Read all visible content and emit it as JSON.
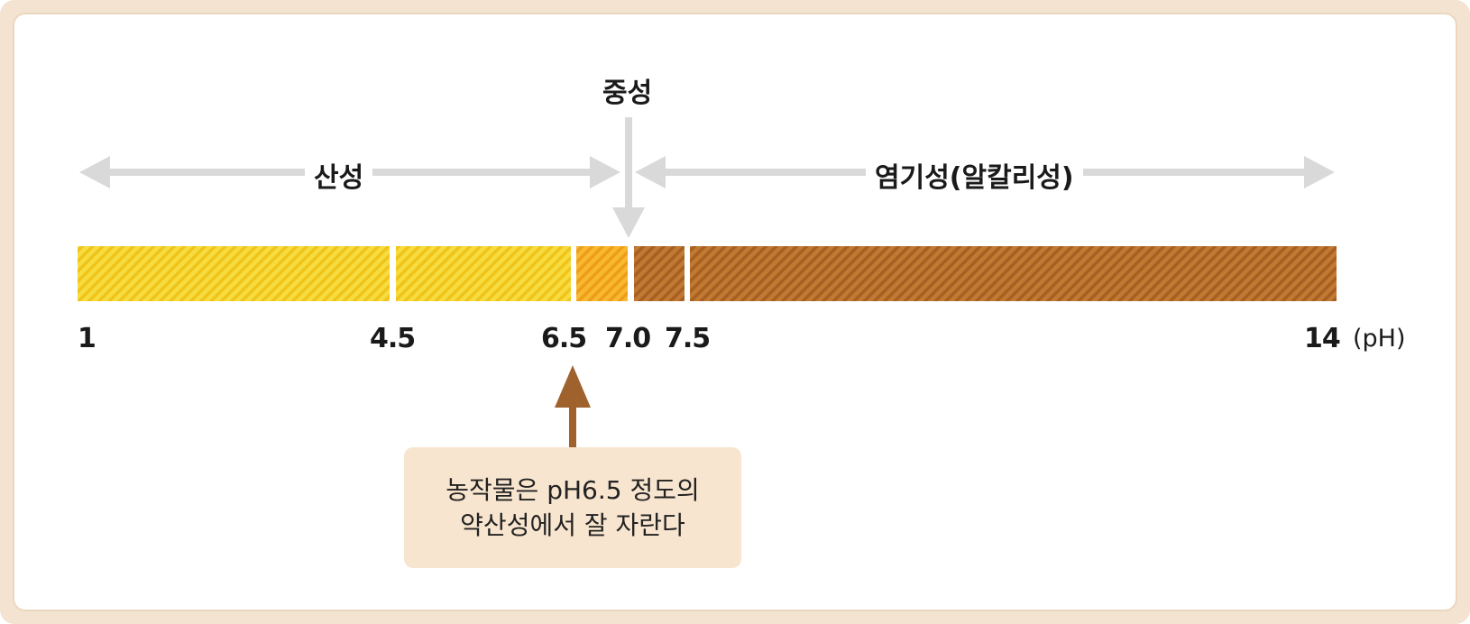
{
  "zones": {
    "acidic": "산성",
    "neutral": "중성",
    "alkaline": "염기성(알칼리성)"
  },
  "scale": {
    "ticks": [
      "1",
      "4.5",
      "6.5",
      "7.0",
      "7.5",
      "14"
    ],
    "unit": "(pH)",
    "segments": [
      {
        "from": 1,
        "to": 4.5,
        "color": "#f5d21c"
      },
      {
        "from": 4.5,
        "to": 6.5,
        "color": "#f5d21c"
      },
      {
        "from": 6.5,
        "to": 7.0,
        "color": "#f5aa1c"
      },
      {
        "from": 7.0,
        "to": 7.5,
        "color": "#b86a24"
      },
      {
        "from": 7.5,
        "to": 14,
        "color": "#b86a24"
      }
    ]
  },
  "callout": {
    "line1": "농작물은 pH6.5 정도의",
    "line2": "약산성에서 잘 자란다",
    "arrow_color": "#a0622d"
  }
}
